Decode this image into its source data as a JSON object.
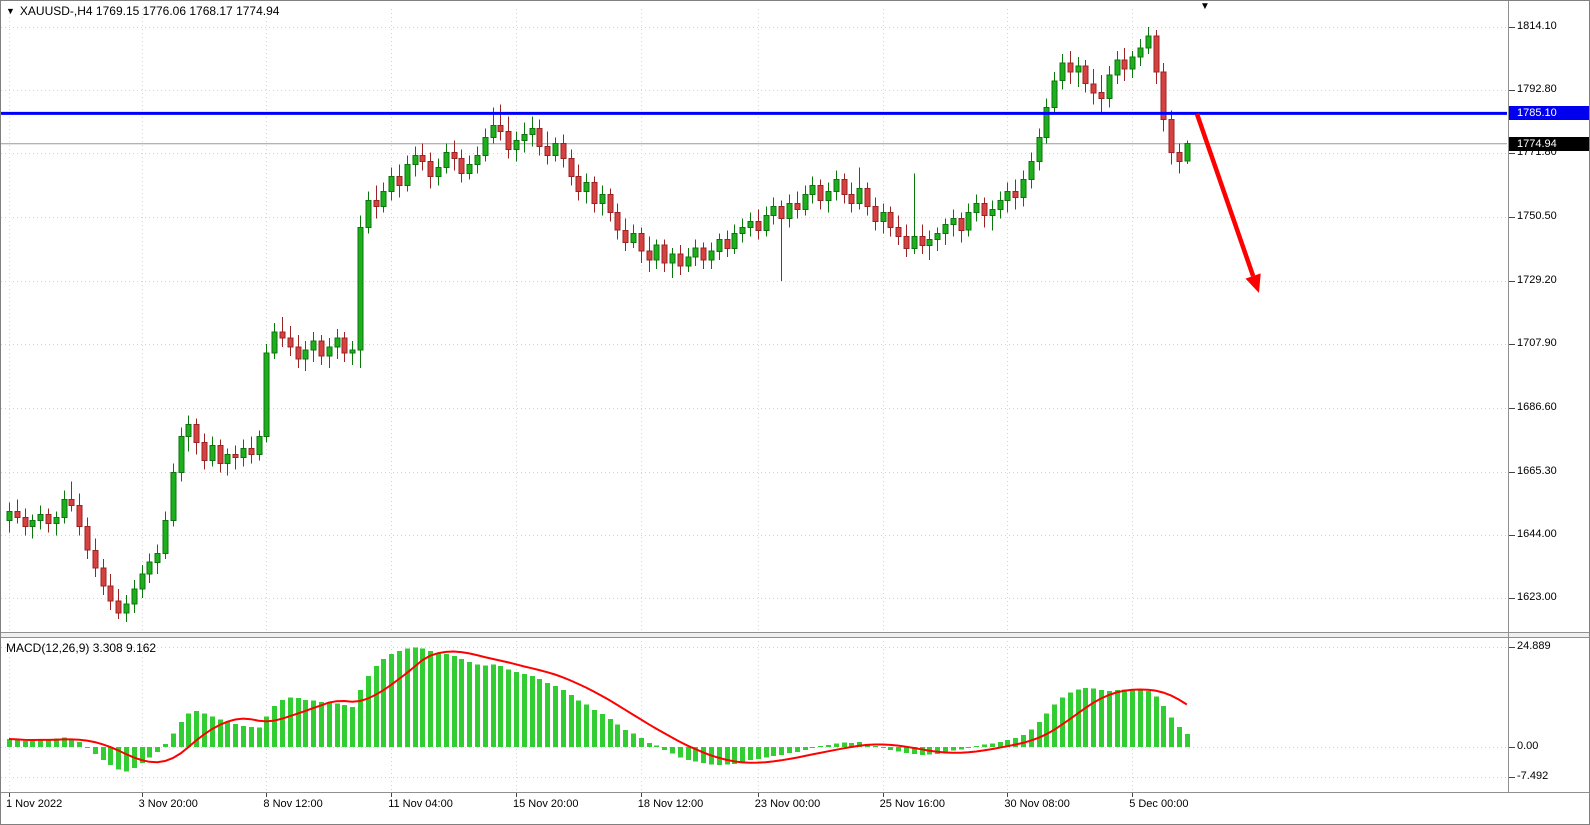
{
  "legend": {
    "symbol_ohlc": "XAUUSD-,H4 1769.15 1776.06 1768.17 1774.94"
  },
  "icons": {
    "symbol_marker": "▼",
    "shift_marker": "▼"
  },
  "macd_panel": {
    "label": "MACD(12,26,9) 3.308 9.162",
    "axis_labels": [
      "24.889",
      "0.00",
      "-7.492"
    ]
  },
  "colors": {
    "up": "#1daf1d",
    "up_border": "#0b760b",
    "down": "#d64141",
    "down_border": "#9c2323",
    "grid": "#d4d4d4",
    "hline": "#0000ff",
    "current_line": "#9a9a9a",
    "macd_hist": "#32cd32",
    "macd_signal": "#ff0000",
    "arrow": "#ff0000"
  },
  "chart_data": {
    "type": "candlestick",
    "symbol": "XAUUSD-",
    "timeframe": "H4",
    "title": "XAUUSD-,H4",
    "current_bar": {
      "open": 1769.15,
      "high": 1776.06,
      "low": 1768.17,
      "close": 1774.94
    },
    "current_price": 1774.94,
    "current_price_label": "1774.94",
    "horizontal_line": 1785.1,
    "horizontal_line_label": "1785.10",
    "price_range": [
      1612,
      1820
    ],
    "price_gridlines": [
      "1814.10",
      "1792.80",
      "1771.80",
      "1750.50",
      "1729.20",
      "1707.90",
      "1686.60",
      "1665.30",
      "1644.00",
      "1623.00"
    ],
    "time_ticks": [
      {
        "i": 0,
        "label": "1 Nov 2022"
      },
      {
        "i": 17,
        "label": "3 Nov 20:00"
      },
      {
        "i": 33,
        "label": "8 Nov 12:00"
      },
      {
        "i": 49,
        "label": "11 Nov 04:00"
      },
      {
        "i": 65,
        "label": "15 Nov 20:00"
      },
      {
        "i": 81,
        "label": "18 Nov 12:00"
      },
      {
        "i": 96,
        "label": "23 Nov 00:00"
      },
      {
        "i": 112,
        "label": "25 Nov 16:00"
      },
      {
        "i": 128,
        "label": "30 Nov 08:00"
      },
      {
        "i": 144,
        "label": "5 Dec 00:00"
      }
    ],
    "ohlc": [
      [
        1649,
        1655,
        1645,
        1652
      ],
      [
        1652,
        1656,
        1648,
        1650
      ],
      [
        1650,
        1653,
        1644,
        1647
      ],
      [
        1647,
        1651,
        1643,
        1649
      ],
      [
        1649,
        1654,
        1646,
        1651
      ],
      [
        1651,
        1653,
        1645,
        1648
      ],
      [
        1648,
        1652,
        1644,
        1650
      ],
      [
        1650,
        1659,
        1648,
        1656
      ],
      [
        1656,
        1662,
        1652,
        1654
      ],
      [
        1654,
        1658,
        1644,
        1647
      ],
      [
        1647,
        1650,
        1636,
        1639
      ],
      [
        1639,
        1643,
        1630,
        1633
      ],
      [
        1633,
        1636,
        1624,
        1627
      ],
      [
        1627,
        1631,
        1619,
        1622
      ],
      [
        1622,
        1626,
        1616,
        1618
      ],
      [
        1618,
        1624,
        1615,
        1621
      ],
      [
        1621,
        1629,
        1618,
        1626
      ],
      [
        1626,
        1634,
        1623,
        1631
      ],
      [
        1631,
        1638,
        1628,
        1635
      ],
      [
        1635,
        1641,
        1631,
        1638
      ],
      [
        1638,
        1652,
        1636,
        1649
      ],
      [
        1649,
        1668,
        1647,
        1665
      ],
      [
        1665,
        1680,
        1662,
        1677
      ],
      [
        1677,
        1684,
        1672,
        1681
      ],
      [
        1681,
        1683,
        1671,
        1675
      ],
      [
        1675,
        1678,
        1666,
        1669
      ],
      [
        1669,
        1677,
        1667,
        1674
      ],
      [
        1674,
        1676,
        1665,
        1668
      ],
      [
        1668,
        1673,
        1664,
        1671
      ],
      [
        1671,
        1674,
        1666,
        1670
      ],
      [
        1670,
        1676,
        1667,
        1673
      ],
      [
        1673,
        1677,
        1668,
        1671
      ],
      [
        1671,
        1679,
        1669,
        1677
      ],
      [
        1677,
        1708,
        1675,
        1705
      ],
      [
        1705,
        1715,
        1703,
        1712
      ],
      [
        1712,
        1717,
        1707,
        1710
      ],
      [
        1710,
        1714,
        1704,
        1707
      ],
      [
        1707,
        1711,
        1700,
        1703
      ],
      [
        1703,
        1709,
        1699,
        1706
      ],
      [
        1706,
        1712,
        1702,
        1709
      ],
      [
        1709,
        1711,
        1701,
        1704
      ],
      [
        1704,
        1710,
        1700,
        1707
      ],
      [
        1707,
        1713,
        1703,
        1710
      ],
      [
        1710,
        1712,
        1702,
        1705
      ],
      [
        1705,
        1709,
        1701,
        1706
      ],
      [
        1706,
        1751,
        1700,
        1747
      ],
      [
        1747,
        1759,
        1745,
        1756
      ],
      [
        1756,
        1761,
        1750,
        1754
      ],
      [
        1754,
        1762,
        1752,
        1759
      ],
      [
        1759,
        1767,
        1756,
        1764
      ],
      [
        1764,
        1768,
        1757,
        1761
      ],
      [
        1761,
        1771,
        1759,
        1768
      ],
      [
        1768,
        1774,
        1764,
        1771
      ],
      [
        1771,
        1775,
        1766,
        1769
      ],
      [
        1769,
        1772,
        1760,
        1764
      ],
      [
        1764,
        1770,
        1761,
        1767
      ],
      [
        1767,
        1775,
        1765,
        1772
      ],
      [
        1772,
        1776,
        1766,
        1770
      ],
      [
        1770,
        1773,
        1762,
        1765
      ],
      [
        1765,
        1771,
        1763,
        1768
      ],
      [
        1768,
        1774,
        1765,
        1771
      ],
      [
        1771,
        1780,
        1769,
        1777
      ],
      [
        1777,
        1787,
        1775,
        1781
      ],
      [
        1781,
        1788,
        1776,
        1779
      ],
      [
        1779,
        1784,
        1770,
        1773
      ],
      [
        1773,
        1779,
        1769,
        1776
      ],
      [
        1776,
        1782,
        1772,
        1778
      ],
      [
        1778,
        1784,
        1774,
        1780
      ],
      [
        1780,
        1783,
        1771,
        1774
      ],
      [
        1774,
        1779,
        1768,
        1771
      ],
      [
        1771,
        1777,
        1769,
        1775
      ],
      [
        1775,
        1778,
        1767,
        1770
      ],
      [
        1770,
        1773,
        1761,
        1764
      ],
      [
        1764,
        1768,
        1756,
        1759
      ],
      [
        1759,
        1765,
        1755,
        1762
      ],
      [
        1762,
        1764,
        1752,
        1755
      ],
      [
        1755,
        1761,
        1751,
        1758
      ],
      [
        1758,
        1760,
        1749,
        1752
      ],
      [
        1752,
        1755,
        1743,
        1746
      ],
      [
        1746,
        1750,
        1739,
        1742
      ],
      [
        1742,
        1748,
        1740,
        1745
      ],
      [
        1745,
        1747,
        1735,
        1739
      ],
      [
        1739,
        1744,
        1732,
        1736
      ],
      [
        1736,
        1743,
        1733,
        1741
      ],
      [
        1741,
        1743,
        1732,
        1735
      ],
      [
        1735,
        1740,
        1730,
        1738
      ],
      [
        1738,
        1741,
        1731,
        1734
      ],
      [
        1734,
        1740,
        1732,
        1737
      ],
      [
        1737,
        1743,
        1734,
        1740
      ],
      [
        1740,
        1742,
        1733,
        1736
      ],
      [
        1736,
        1742,
        1733,
        1739
      ],
      [
        1739,
        1745,
        1736,
        1743
      ],
      [
        1743,
        1746,
        1737,
        1740
      ],
      [
        1740,
        1748,
        1738,
        1745
      ],
      [
        1745,
        1750,
        1742,
        1747
      ],
      [
        1747,
        1752,
        1744,
        1749
      ],
      [
        1749,
        1753,
        1743,
        1746
      ],
      [
        1746,
        1754,
        1744,
        1751
      ],
      [
        1751,
        1757,
        1748,
        1754
      ],
      [
        1754,
        1756,
        1729,
        1750
      ],
      [
        1750,
        1758,
        1747,
        1755
      ],
      [
        1755,
        1759,
        1750,
        1753
      ],
      [
        1753,
        1761,
        1751,
        1758
      ],
      [
        1758,
        1764,
        1755,
        1761
      ],
      [
        1761,
        1763,
        1753,
        1756
      ],
      [
        1756,
        1762,
        1752,
        1759
      ],
      [
        1759,
        1766,
        1756,
        1763
      ],
      [
        1763,
        1765,
        1755,
        1758
      ],
      [
        1758,
        1762,
        1752,
        1755
      ],
      [
        1755,
        1767,
        1753,
        1760
      ],
      [
        1760,
        1762,
        1751,
        1754
      ],
      [
        1754,
        1757,
        1746,
        1749
      ],
      [
        1749,
        1755,
        1745,
        1752
      ],
      [
        1752,
        1754,
        1744,
        1747
      ],
      [
        1747,
        1751,
        1741,
        1744
      ],
      [
        1744,
        1748,
        1737,
        1740
      ],
      [
        1740,
        1765,
        1738,
        1744
      ],
      [
        1744,
        1748,
        1738,
        1741
      ],
      [
        1741,
        1746,
        1736,
        1743
      ],
      [
        1743,
        1747,
        1739,
        1745
      ],
      [
        1745,
        1750,
        1741,
        1748
      ],
      [
        1748,
        1753,
        1744,
        1750
      ],
      [
        1750,
        1752,
        1742,
        1746
      ],
      [
        1746,
        1755,
        1744,
        1752
      ],
      [
        1752,
        1758,
        1749,
        1755
      ],
      [
        1755,
        1757,
        1747,
        1751
      ],
      [
        1751,
        1756,
        1746,
        1753
      ],
      [
        1753,
        1759,
        1750,
        1756
      ],
      [
        1756,
        1762,
        1752,
        1759
      ],
      [
        1759,
        1763,
        1753,
        1757
      ],
      [
        1757,
        1766,
        1754,
        1763
      ],
      [
        1763,
        1772,
        1760,
        1769
      ],
      [
        1769,
        1780,
        1766,
        1777
      ],
      [
        1777,
        1790,
        1775,
        1787
      ],
      [
        1787,
        1799,
        1785,
        1796
      ],
      [
        1796,
        1805,
        1793,
        1802
      ],
      [
        1802,
        1806,
        1795,
        1799
      ],
      [
        1799,
        1804,
        1794,
        1801
      ],
      [
        1801,
        1803,
        1792,
        1795
      ],
      [
        1795,
        1800,
        1788,
        1792
      ],
      [
        1792,
        1798,
        1785,
        1790
      ],
      [
        1790,
        1801,
        1787,
        1798
      ],
      [
        1798,
        1806,
        1795,
        1803
      ],
      [
        1803,
        1807,
        1796,
        1800
      ],
      [
        1800,
        1806,
        1797,
        1804
      ],
      [
        1804,
        1810,
        1801,
        1807
      ],
      [
        1807,
        1814,
        1805,
        1811
      ],
      [
        1811,
        1813,
        1795,
        1799
      ],
      [
        1799,
        1802,
        1779,
        1783
      ],
      [
        1783,
        1786,
        1768,
        1772
      ],
      [
        1772,
        1775,
        1765,
        1769
      ],
      [
        1769.15,
        1776.06,
        1768.17,
        1774.94
      ]
    ],
    "indicator": {
      "name": "MACD(12,26,9)",
      "type": "histogram+signal",
      "main_value": 3.308,
      "signal_value": 9.162,
      "range": [
        -8.5,
        26.5
      ],
      "macd": [
        2.0,
        1.8,
        1.5,
        1.7,
        1.9,
        1.8,
        2.1,
        2.4,
        2.0,
        1.2,
        -0.3,
        -1.8,
        -3.2,
        -4.5,
        -5.6,
        -6.1,
        -5.2,
        -4.0,
        -2.6,
        -1.2,
        0.8,
        3.4,
        6.2,
        8.4,
        9.0,
        8.4,
        7.6,
        6.9,
        6.2,
        5.8,
        5.3,
        5.0,
        4.9,
        7.6,
        10.2,
        11.8,
        12.4,
        12.2,
        11.8,
        11.6,
        11.2,
        11.0,
        10.9,
        10.5,
        10.0,
        14.2,
        17.8,
        20.2,
        22.0,
        23.3,
        24.0,
        24.6,
        24.889,
        24.6,
        24.0,
        23.4,
        23.2,
        22.8,
        22.0,
        21.2,
        20.6,
        20.4,
        20.6,
        20.2,
        19.4,
        18.8,
        18.2,
        17.8,
        17.0,
        16.0,
        15.2,
        14.2,
        13.0,
        11.6,
        10.6,
        9.2,
        8.2,
        7.0,
        5.6,
        4.2,
        3.4,
        2.2,
        1.0,
        0.4,
        -0.8,
        -1.6,
        -2.6,
        -3.2,
        -3.6,
        -4.0,
        -4.4,
        -4.5,
        -4.4,
        -4.2,
        -3.8,
        -3.3,
        -3.0,
        -2.6,
        -2.2,
        -2.0,
        -1.5,
        -1.2,
        -0.7,
        -0.2,
        0.2,
        0.5,
        0.9,
        1.1,
        1.0,
        1.2,
        0.8,
        0.2,
        -0.3,
        -0.7,
        -1.1,
        -1.5,
        -1.8,
        -2.0,
        -1.9,
        -1.7,
        -1.3,
        -0.9,
        -0.6,
        -0.2,
        0.3,
        0.6,
        0.9,
        1.3,
        1.8,
        2.2,
        3.0,
        4.4,
        6.2,
        8.4,
        10.6,
        12.4,
        13.6,
        14.4,
        14.8,
        14.6,
        14.2,
        14.0,
        14.2,
        14.4,
        14.5,
        14.3,
        14.0,
        12.6,
        10.2,
        7.4,
        5.0,
        3.308
      ]
    },
    "arrow": {
      "from": [
        1196,
        113
      ],
      "to": [
        1258,
        292
      ]
    }
  }
}
